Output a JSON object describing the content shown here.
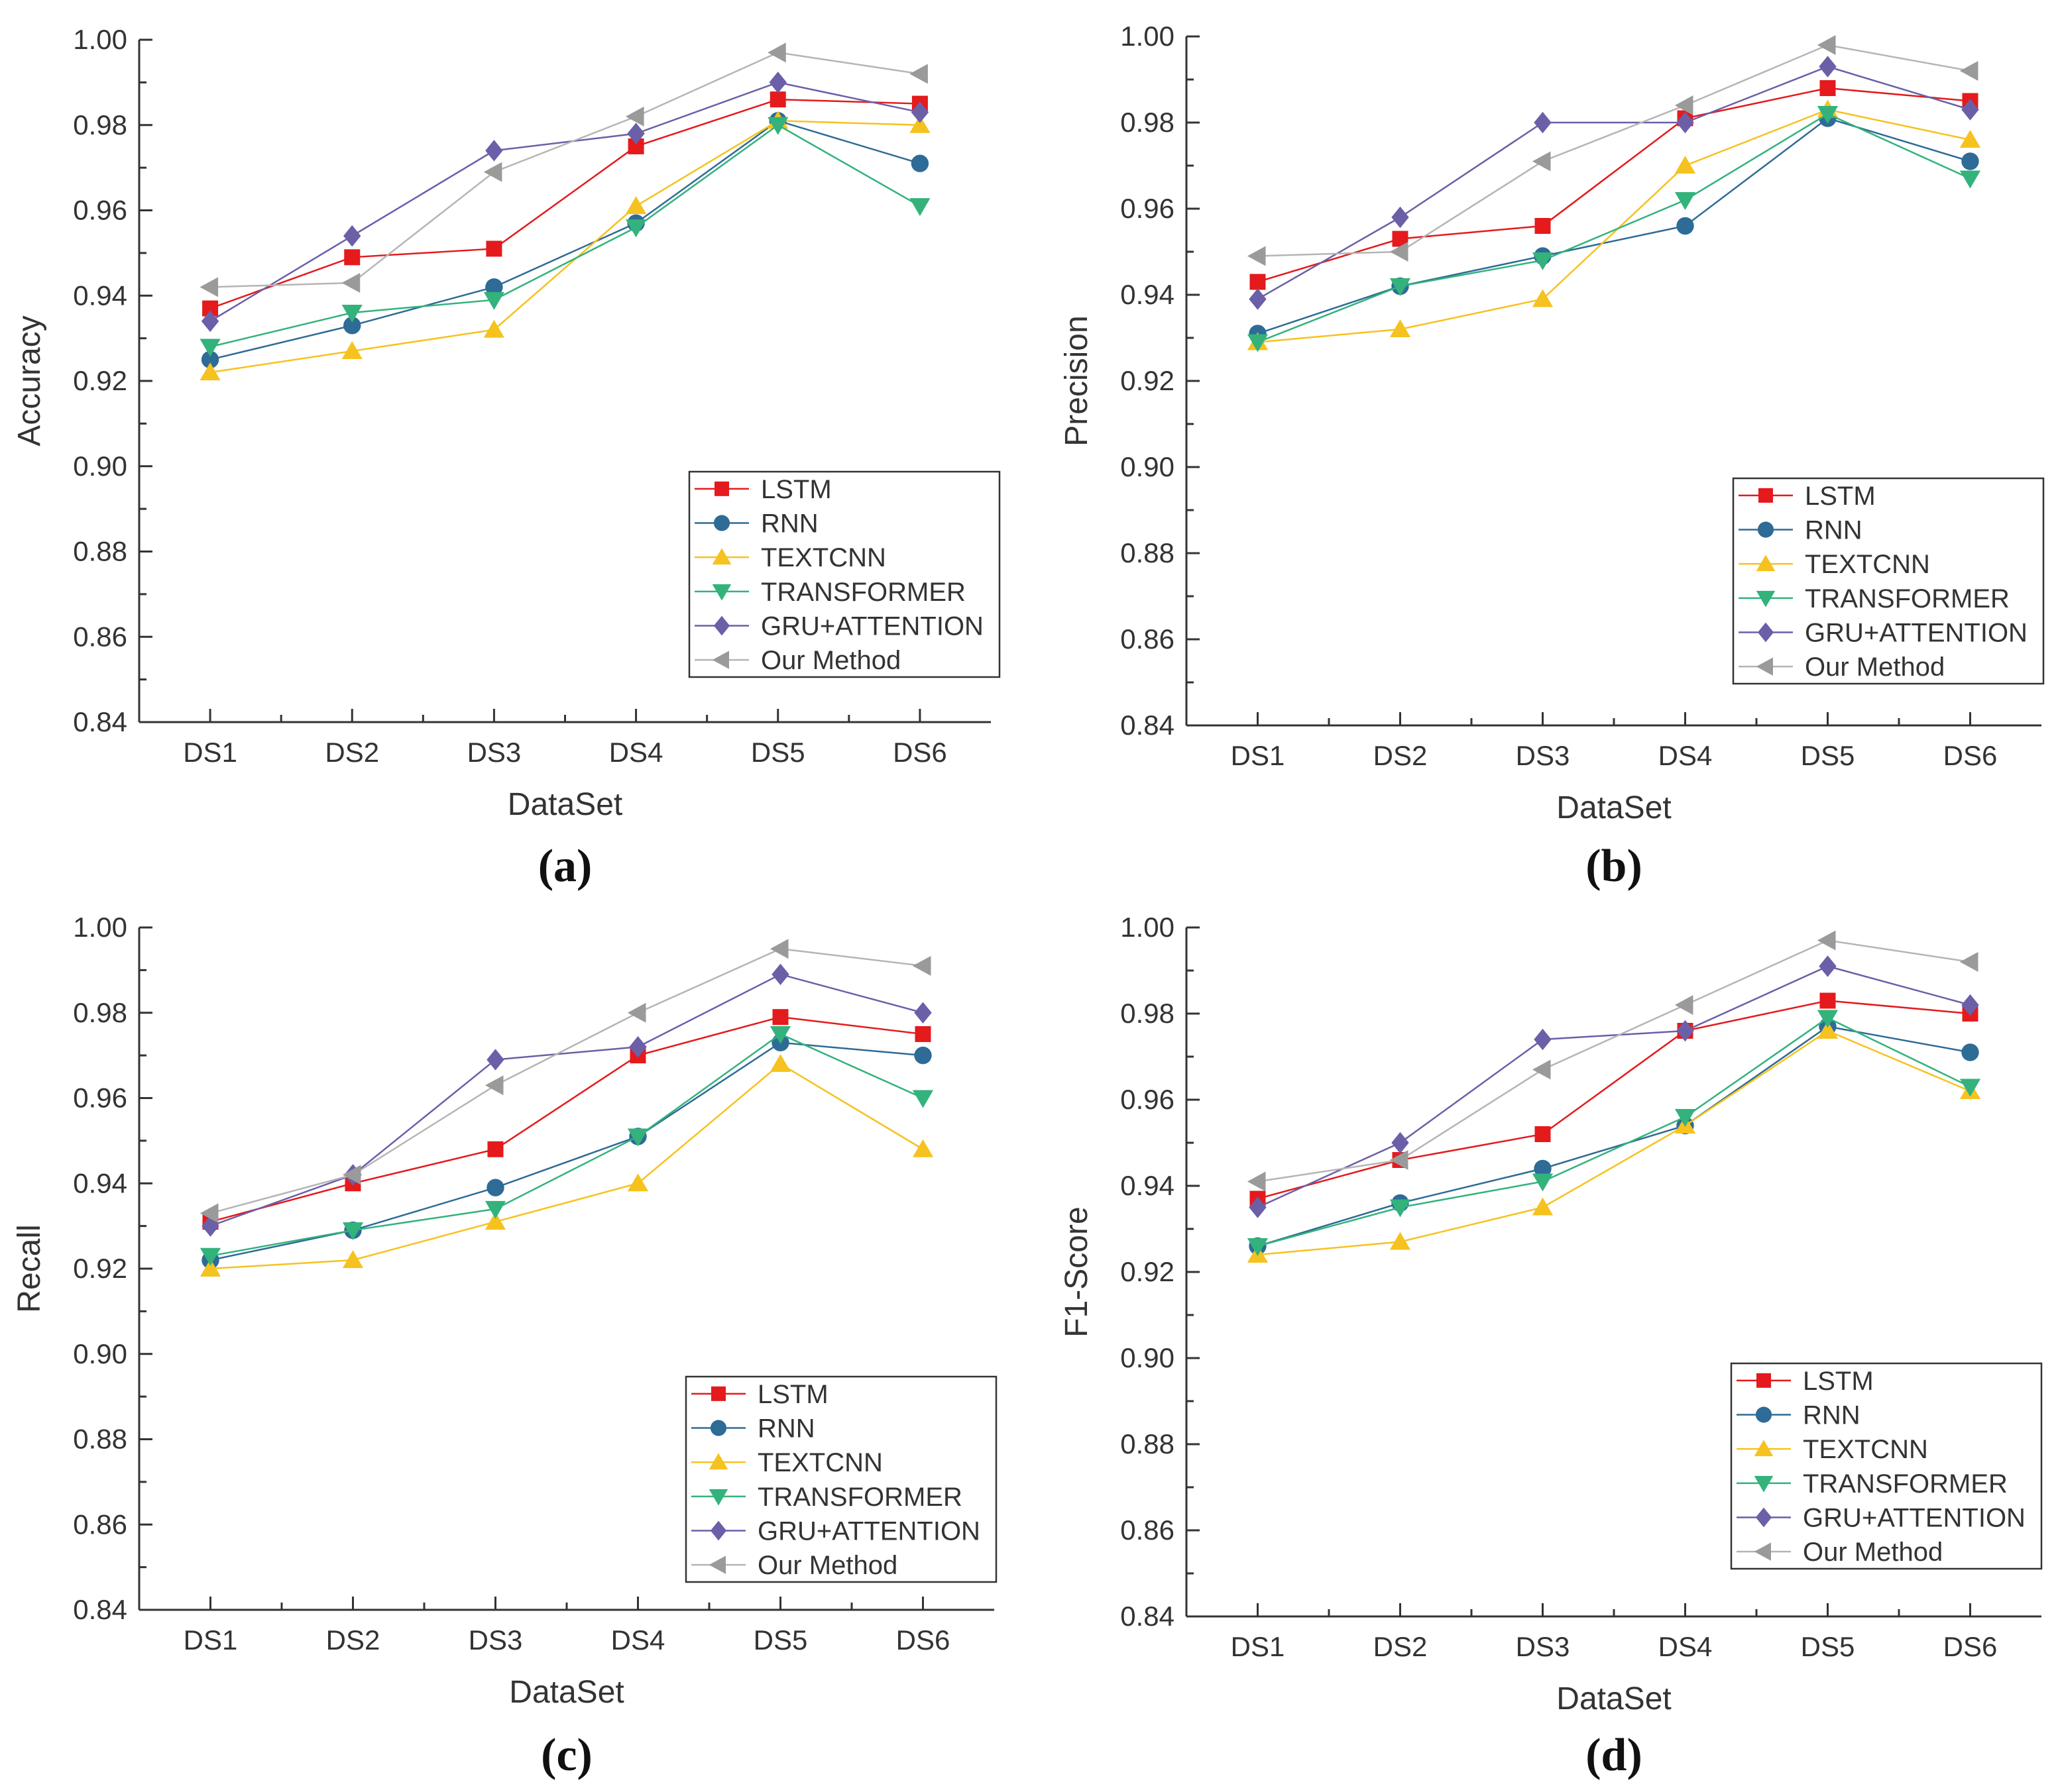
{
  "figure": {
    "marker_colors": {
      "LSTM": "#e41a1c",
      "RNN": "#2e6b96",
      "TEXTCNN": "#f6c21f",
      "TRANSFORMER": "#33b27c",
      "GRU+ATTENTION": "#6b5fa8",
      "Our Method": "#9a9a9a"
    },
    "line_colors": {
      "LSTM": "#e41a1c",
      "RNN": "#2e6b96",
      "TEXTCNN": "#f6c21f",
      "TRANSFORMER": "#33b27c",
      "GRU+ATTENTION": "#6b5fa8",
      "Our Method": "#b5b5b5"
    },
    "markers": {
      "LSTM": "square",
      "RNN": "circle",
      "TEXTCNN": "triangle-up",
      "TRANSFORMER": "triangle-down",
      "GRU+ATTENTION": "diamond",
      "Our Method": "triangle-left"
    }
  },
  "chart_data": [
    {
      "type": "line",
      "panel": "a",
      "panel_label": "(a)",
      "xlabel": "DataSet",
      "ylabel": "Accuracy",
      "categories": [
        "DS1",
        "DS2",
        "DS3",
        "DS4",
        "DS5",
        "DS6"
      ],
      "ylim": [
        0.84,
        1.0
      ],
      "yticks": [
        "0.84",
        "0.86",
        "0.88",
        "0.90",
        "0.92",
        "0.94",
        "0.96",
        "0.98",
        "1.00"
      ],
      "legend_position": "lower-right",
      "series": [
        {
          "name": "LSTM",
          "values": [
            0.937,
            0.949,
            0.951,
            0.975,
            0.986,
            0.985
          ]
        },
        {
          "name": "RNN",
          "values": [
            0.925,
            0.933,
            0.942,
            0.957,
            0.981,
            0.971
          ]
        },
        {
          "name": "TEXTCNN",
          "values": [
            0.922,
            0.927,
            0.932,
            0.961,
            0.981,
            0.98
          ]
        },
        {
          "name": "TRANSFORMER",
          "values": [
            0.928,
            0.936,
            0.939,
            0.956,
            0.98,
            0.961
          ]
        },
        {
          "name": "GRU+ATTENTION",
          "values": [
            0.934,
            0.954,
            0.974,
            0.978,
            0.99,
            0.983
          ]
        },
        {
          "name": "Our Method",
          "values": [
            0.942,
            0.943,
            0.969,
            0.982,
            0.997,
            0.992
          ]
        }
      ]
    },
    {
      "type": "line",
      "panel": "b",
      "panel_label": "(b)",
      "xlabel": "DataSet",
      "ylabel": "Precision",
      "categories": [
        "DS1",
        "DS2",
        "DS3",
        "DS4",
        "DS5",
        "DS6"
      ],
      "ylim": [
        0.84,
        1.0
      ],
      "yticks": [
        "0.84",
        "0.86",
        "0.88",
        "0.90",
        "0.92",
        "0.94",
        "0.96",
        "0.98",
        "1.00"
      ],
      "legend_position": "lower-right",
      "series": [
        {
          "name": "LSTM",
          "values": [
            0.943,
            0.953,
            0.956,
            0.981,
            0.988,
            0.985
          ]
        },
        {
          "name": "RNN",
          "values": [
            0.931,
            0.942,
            0.949,
            0.956,
            0.981,
            0.971
          ]
        },
        {
          "name": "TEXTCNN",
          "values": [
            0.929,
            0.932,
            0.939,
            0.97,
            0.983,
            0.976
          ]
        },
        {
          "name": "TRANSFORMER",
          "values": [
            0.929,
            0.942,
            0.948,
            0.962,
            0.982,
            0.967
          ]
        },
        {
          "name": "GRU+ATTENTION",
          "values": [
            0.939,
            0.958,
            0.98,
            0.98,
            0.993,
            0.983
          ]
        },
        {
          "name": "Our Method",
          "values": [
            0.949,
            0.95,
            0.971,
            0.984,
            0.998,
            0.992
          ]
        }
      ]
    },
    {
      "type": "line",
      "panel": "c",
      "panel_label": "(c)",
      "xlabel": "DataSet",
      "ylabel": "Recall",
      "categories": [
        "DS1",
        "DS2",
        "DS3",
        "DS4",
        "DS5",
        "DS6"
      ],
      "ylim": [
        0.84,
        1.0
      ],
      "yticks": [
        "0.84",
        "0.86",
        "0.88",
        "0.90",
        "0.92",
        "0.94",
        "0.96",
        "0.98",
        "1.00"
      ],
      "legend_position": "lower-right",
      "series": [
        {
          "name": "LSTM",
          "values": [
            0.931,
            0.94,
            0.948,
            0.97,
            0.979,
            0.975
          ]
        },
        {
          "name": "RNN",
          "values": [
            0.922,
            0.929,
            0.939,
            0.951,
            0.973,
            0.97
          ]
        },
        {
          "name": "TEXTCNN",
          "values": [
            0.92,
            0.922,
            0.931,
            0.94,
            0.968,
            0.948
          ]
        },
        {
          "name": "TRANSFORMER",
          "values": [
            0.923,
            0.929,
            0.934,
            0.951,
            0.975,
            0.96
          ]
        },
        {
          "name": "GRU+ATTENTION",
          "values": [
            0.93,
            0.942,
            0.969,
            0.972,
            0.989,
            0.98
          ]
        },
        {
          "name": "Our Method",
          "values": [
            0.933,
            0.942,
            0.963,
            0.98,
            0.995,
            0.991
          ]
        }
      ]
    },
    {
      "type": "line",
      "panel": "d",
      "panel_label": "(d)",
      "xlabel": "DataSet",
      "ylabel": "F1-Score",
      "categories": [
        "DS1",
        "DS2",
        "DS3",
        "DS4",
        "DS5",
        "DS6"
      ],
      "ylim": [
        0.84,
        1.0
      ],
      "yticks": [
        "0.84",
        "0.86",
        "0.88",
        "0.90",
        "0.92",
        "0.94",
        "0.96",
        "0.98",
        "1.00"
      ],
      "legend_position": "lower-right",
      "series": [
        {
          "name": "LSTM",
          "values": [
            0.937,
            0.946,
            0.952,
            0.976,
            0.983,
            0.98
          ]
        },
        {
          "name": "RNN",
          "values": [
            0.926,
            0.936,
            0.944,
            0.954,
            0.977,
            0.971
          ]
        },
        {
          "name": "TEXTCNN",
          "values": [
            0.924,
            0.927,
            0.935,
            0.954,
            0.976,
            0.962
          ]
        },
        {
          "name": "TRANSFORMER",
          "values": [
            0.926,
            0.935,
            0.941,
            0.956,
            0.979,
            0.963
          ]
        },
        {
          "name": "GRU+ATTENTION",
          "values": [
            0.935,
            0.95,
            0.974,
            0.976,
            0.991,
            0.982
          ]
        },
        {
          "name": "Our Method",
          "values": [
            0.941,
            0.946,
            0.967,
            0.982,
            0.997,
            0.992
          ]
        }
      ]
    }
  ]
}
